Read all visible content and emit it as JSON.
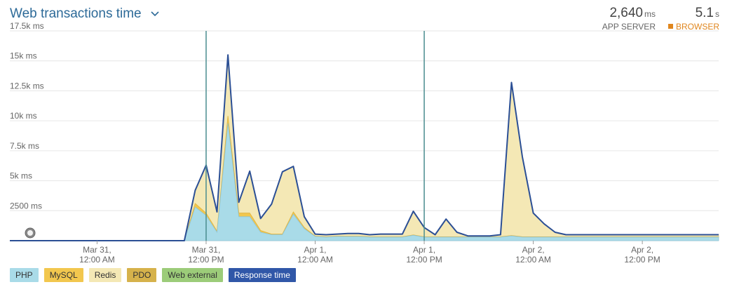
{
  "header": {
    "title": "Web transactions time",
    "app_server_value": "2,640",
    "app_server_unit": "ms",
    "app_server_label": "APP SERVER",
    "browser_value": "5.1",
    "browser_unit": "s",
    "browser_label": "BROWSER"
  },
  "colors": {
    "php": "#a9dbe8",
    "mysql": "#f2c74e",
    "redis": "#f4e8b5",
    "pdo": "#d6b24b",
    "web_external": "#9ccc79",
    "response_time": "#2b4f95",
    "marker": "#4a8d8f",
    "browser": "#e0861d"
  },
  "legend": [
    "PHP",
    "MySQL",
    "Redis",
    "PDO",
    "Web external",
    "Response time"
  ],
  "chart_data": {
    "type": "area",
    "yticks": [
      "17.5k ms",
      "15k ms",
      "12.5k ms",
      "10k ms",
      "7.5k ms",
      "5k ms",
      "2500 ms"
    ],
    "ylim": [
      0,
      17500
    ],
    "xlim": [
      0,
      65
    ],
    "xtick_labels": [
      {
        "x": 8,
        "line1": "Mar 31,",
        "line2": "12:00 AM"
      },
      {
        "x": 18,
        "line1": "Mar 31,",
        "line2": "12:00 PM"
      },
      {
        "x": 28,
        "line1": "Apr 1,",
        "line2": "12:00 AM"
      },
      {
        "x": 38,
        "line1": "Apr 1,",
        "line2": "12:00 PM"
      },
      {
        "x": 48,
        "line1": "Apr 2,",
        "line2": "12:00 AM"
      },
      {
        "x": 58,
        "line1": "Apr 2,",
        "line2": "12:00 PM"
      }
    ],
    "markers": [
      18,
      38
    ],
    "x": [
      0,
      16,
      17,
      18,
      19,
      20,
      21,
      22,
      23,
      24,
      25,
      26,
      27,
      28,
      29,
      30,
      31,
      32,
      33,
      34,
      35,
      36,
      37,
      38,
      39,
      40,
      41,
      42,
      43,
      44,
      45,
      46,
      47,
      48,
      49,
      50,
      51,
      52,
      53,
      55,
      60,
      65
    ],
    "series": [
      {
        "name": "PHP",
        "values": [
          0,
          0,
          2800,
          2100,
          700,
          9800,
          2000,
          2000,
          700,
          500,
          500,
          2200,
          1000,
          350,
          300,
          350,
          350,
          350,
          300,
          300,
          300,
          300,
          450,
          300,
          300,
          300,
          300,
          300,
          300,
          300,
          300,
          400,
          300,
          300,
          300,
          300,
          300,
          300,
          300,
          300,
          300,
          300
        ]
      },
      {
        "name": "MySQL",
        "values": [
          0,
          0,
          300,
          200,
          100,
          600,
          300,
          300,
          150,
          50,
          50,
          200,
          100,
          30,
          30,
          30,
          30,
          30,
          30,
          30,
          30,
          30,
          30,
          30,
          30,
          30,
          30,
          30,
          30,
          30,
          30,
          30,
          30,
          30,
          30,
          30,
          30,
          30,
          30,
          30,
          30,
          30
        ]
      },
      {
        "name": "Redis",
        "values": [
          0,
          0,
          1100,
          4000,
          1600,
          5100,
          900,
          3500,
          1000,
          2500,
          5200,
          3800,
          900,
          170,
          170,
          170,
          230,
          220,
          170,
          220,
          220,
          220,
          1970,
          770,
          170,
          1470,
          370,
          70,
          70,
          70,
          170,
          12770,
          6670,
          1970,
          1070,
          370,
          170,
          170,
          170,
          170,
          170,
          170
        ]
      },
      {
        "name": "Response time",
        "values": [
          0,
          0,
          4200,
          6300,
          2400,
          15500,
          3200,
          5800,
          1850,
          3050,
          5750,
          6200,
          2000,
          550,
          500,
          550,
          600,
          600,
          500,
          550,
          550,
          550,
          2450,
          1100,
          500,
          1800,
          700,
          400,
          400,
          400,
          500,
          13200,
          7000,
          2300,
          1400,
          700,
          500,
          500,
          500,
          500,
          500,
          500
        ]
      }
    ]
  }
}
